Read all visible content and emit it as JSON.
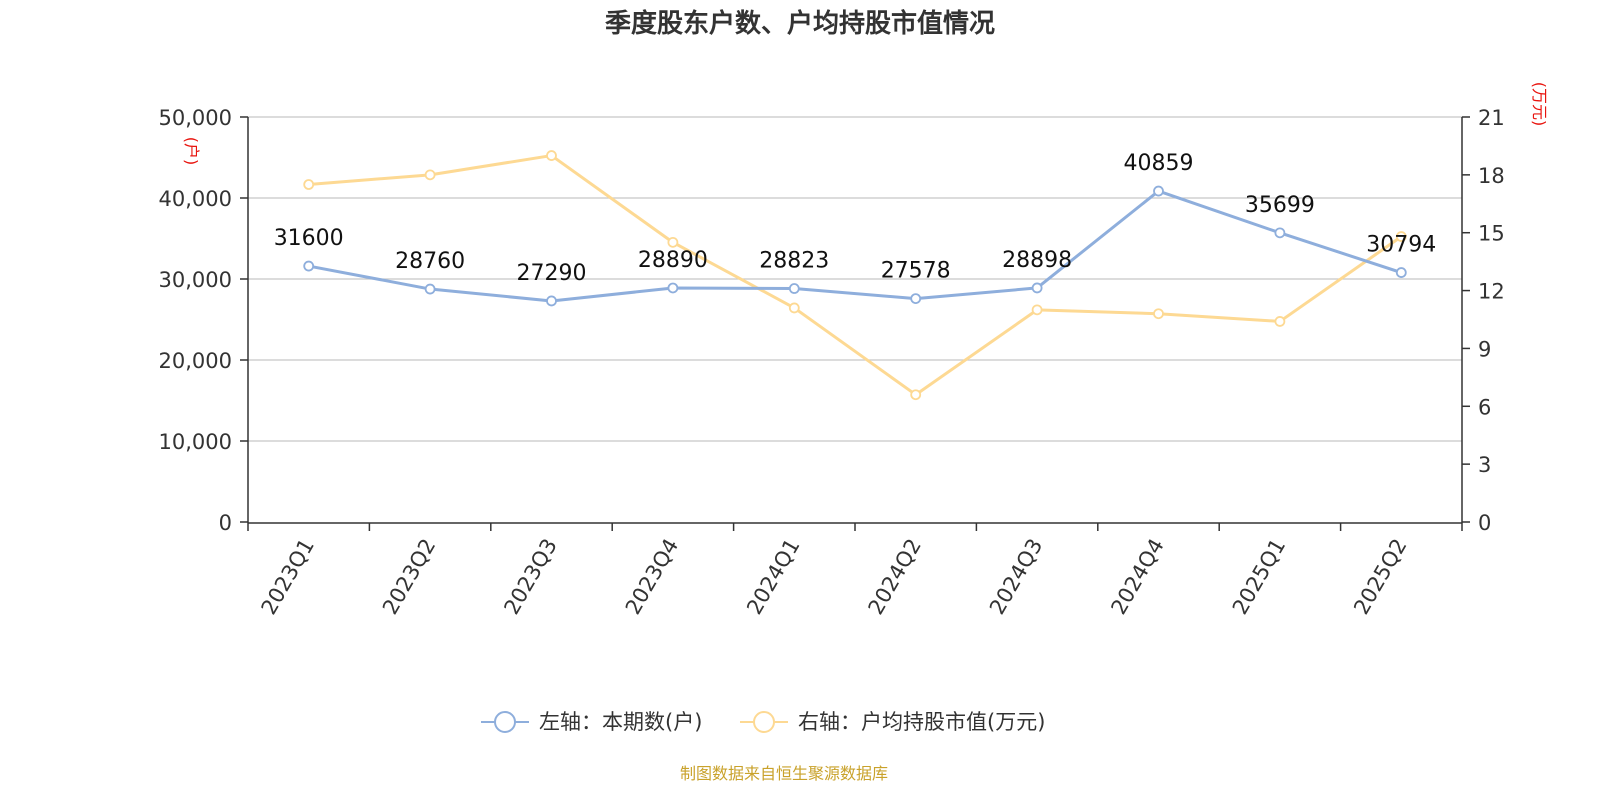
{
  "colors": {
    "series_left": "#8eaedc",
    "series_right": "#fdd993",
    "axis": "#333333",
    "grid": "#c8c8c8",
    "unit_text": "#e8140e",
    "source_text": "#c9a22b"
  },
  "source": "制图数据来自恒生聚源数据库",
  "chart_data": {
    "type": "line",
    "title": "季度股东户数、户均持股市值情况",
    "categories": [
      "2023Q1",
      "2023Q2",
      "2023Q3",
      "2023Q4",
      "2024Q1",
      "2024Q2",
      "2024Q3",
      "2024Q4",
      "2025Q1",
      "2025Q2"
    ],
    "left_axis": {
      "unit_label": "(户)",
      "ylim": [
        0,
        50000
      ],
      "ticks": [
        0,
        10000,
        20000,
        30000,
        40000,
        50000
      ],
      "tick_labels": [
        "0",
        "10,000",
        "20,000",
        "30,000",
        "40,000",
        "50,000"
      ]
    },
    "right_axis": {
      "unit_label": "(万元)",
      "ylim": [
        0,
        21
      ],
      "ticks": [
        0,
        3,
        6,
        9,
        12,
        15,
        18,
        21
      ],
      "tick_labels": [
        "0",
        "3",
        "6",
        "9",
        "12",
        "15",
        "18",
        "21"
      ]
    },
    "grid": true,
    "legend_position": "bottom",
    "series": [
      {
        "name": "左轴：本期数(户)",
        "axis": "left",
        "values": [
          31600,
          28760,
          27290,
          28890,
          28823,
          27578,
          28898,
          40859,
          35699,
          30794
        ],
        "data_labels": [
          "31600",
          "28760",
          "27290",
          "28890",
          "28823",
          "27578",
          "28898",
          "40859",
          "35699",
          "30794"
        ]
      },
      {
        "name": "右轴：户均持股市值(万元)",
        "axis": "right",
        "values": [
          17.5,
          18.0,
          19.0,
          14.5,
          11.1,
          6.6,
          11.0,
          10.8,
          10.4,
          14.8
        ]
      }
    ]
  }
}
